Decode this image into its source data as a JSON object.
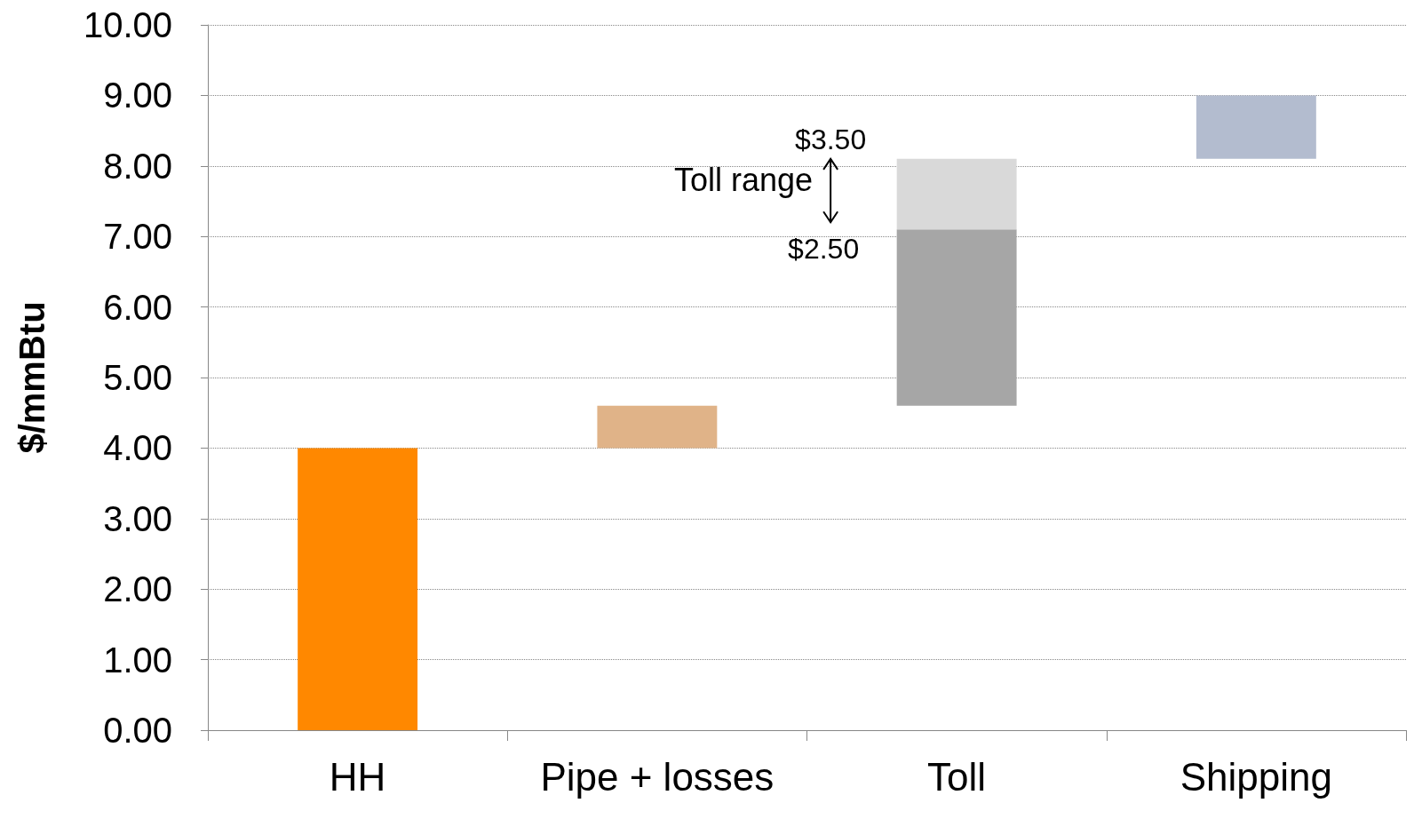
{
  "chart_data": {
    "type": "bar",
    "ylabel": "$/mmBtu",
    "categories": [
      "HH",
      "Pipe + losses",
      "Toll",
      "Shipping"
    ],
    "series": [
      {
        "colors": [
          "#ff8800",
          "#e0b388",
          "#a6a6a6",
          "#b3bccf"
        ],
        "base": [
          0,
          4.0,
          4.6,
          8.1
        ],
        "values": [
          4.0,
          0.6,
          2.5,
          0.9
        ]
      },
      {
        "color": "#d9d9d9",
        "base": [
          null,
          null,
          7.1,
          null
        ],
        "values": [
          null,
          null,
          1.0,
          null
        ]
      }
    ],
    "ylim": [
      0,
      10
    ],
    "yticks": [
      {
        "value": 0,
        "label": "0.00"
      },
      {
        "value": 1,
        "label": "1.00"
      },
      {
        "value": 2,
        "label": "2.00"
      },
      {
        "value": 3,
        "label": "3.00"
      },
      {
        "value": 4,
        "label": "4.00"
      },
      {
        "value": 5,
        "label": "5.00"
      },
      {
        "value": 6,
        "label": "6.00"
      },
      {
        "value": 7,
        "label": "7.00"
      },
      {
        "value": 8,
        "label": "8.00"
      },
      {
        "value": 9,
        "label": "9.00"
      },
      {
        "value": 10,
        "label": "10.00"
      }
    ],
    "grid": "y",
    "annotations": [
      "$3.50",
      "Toll range",
      "$2.50"
    ]
  }
}
